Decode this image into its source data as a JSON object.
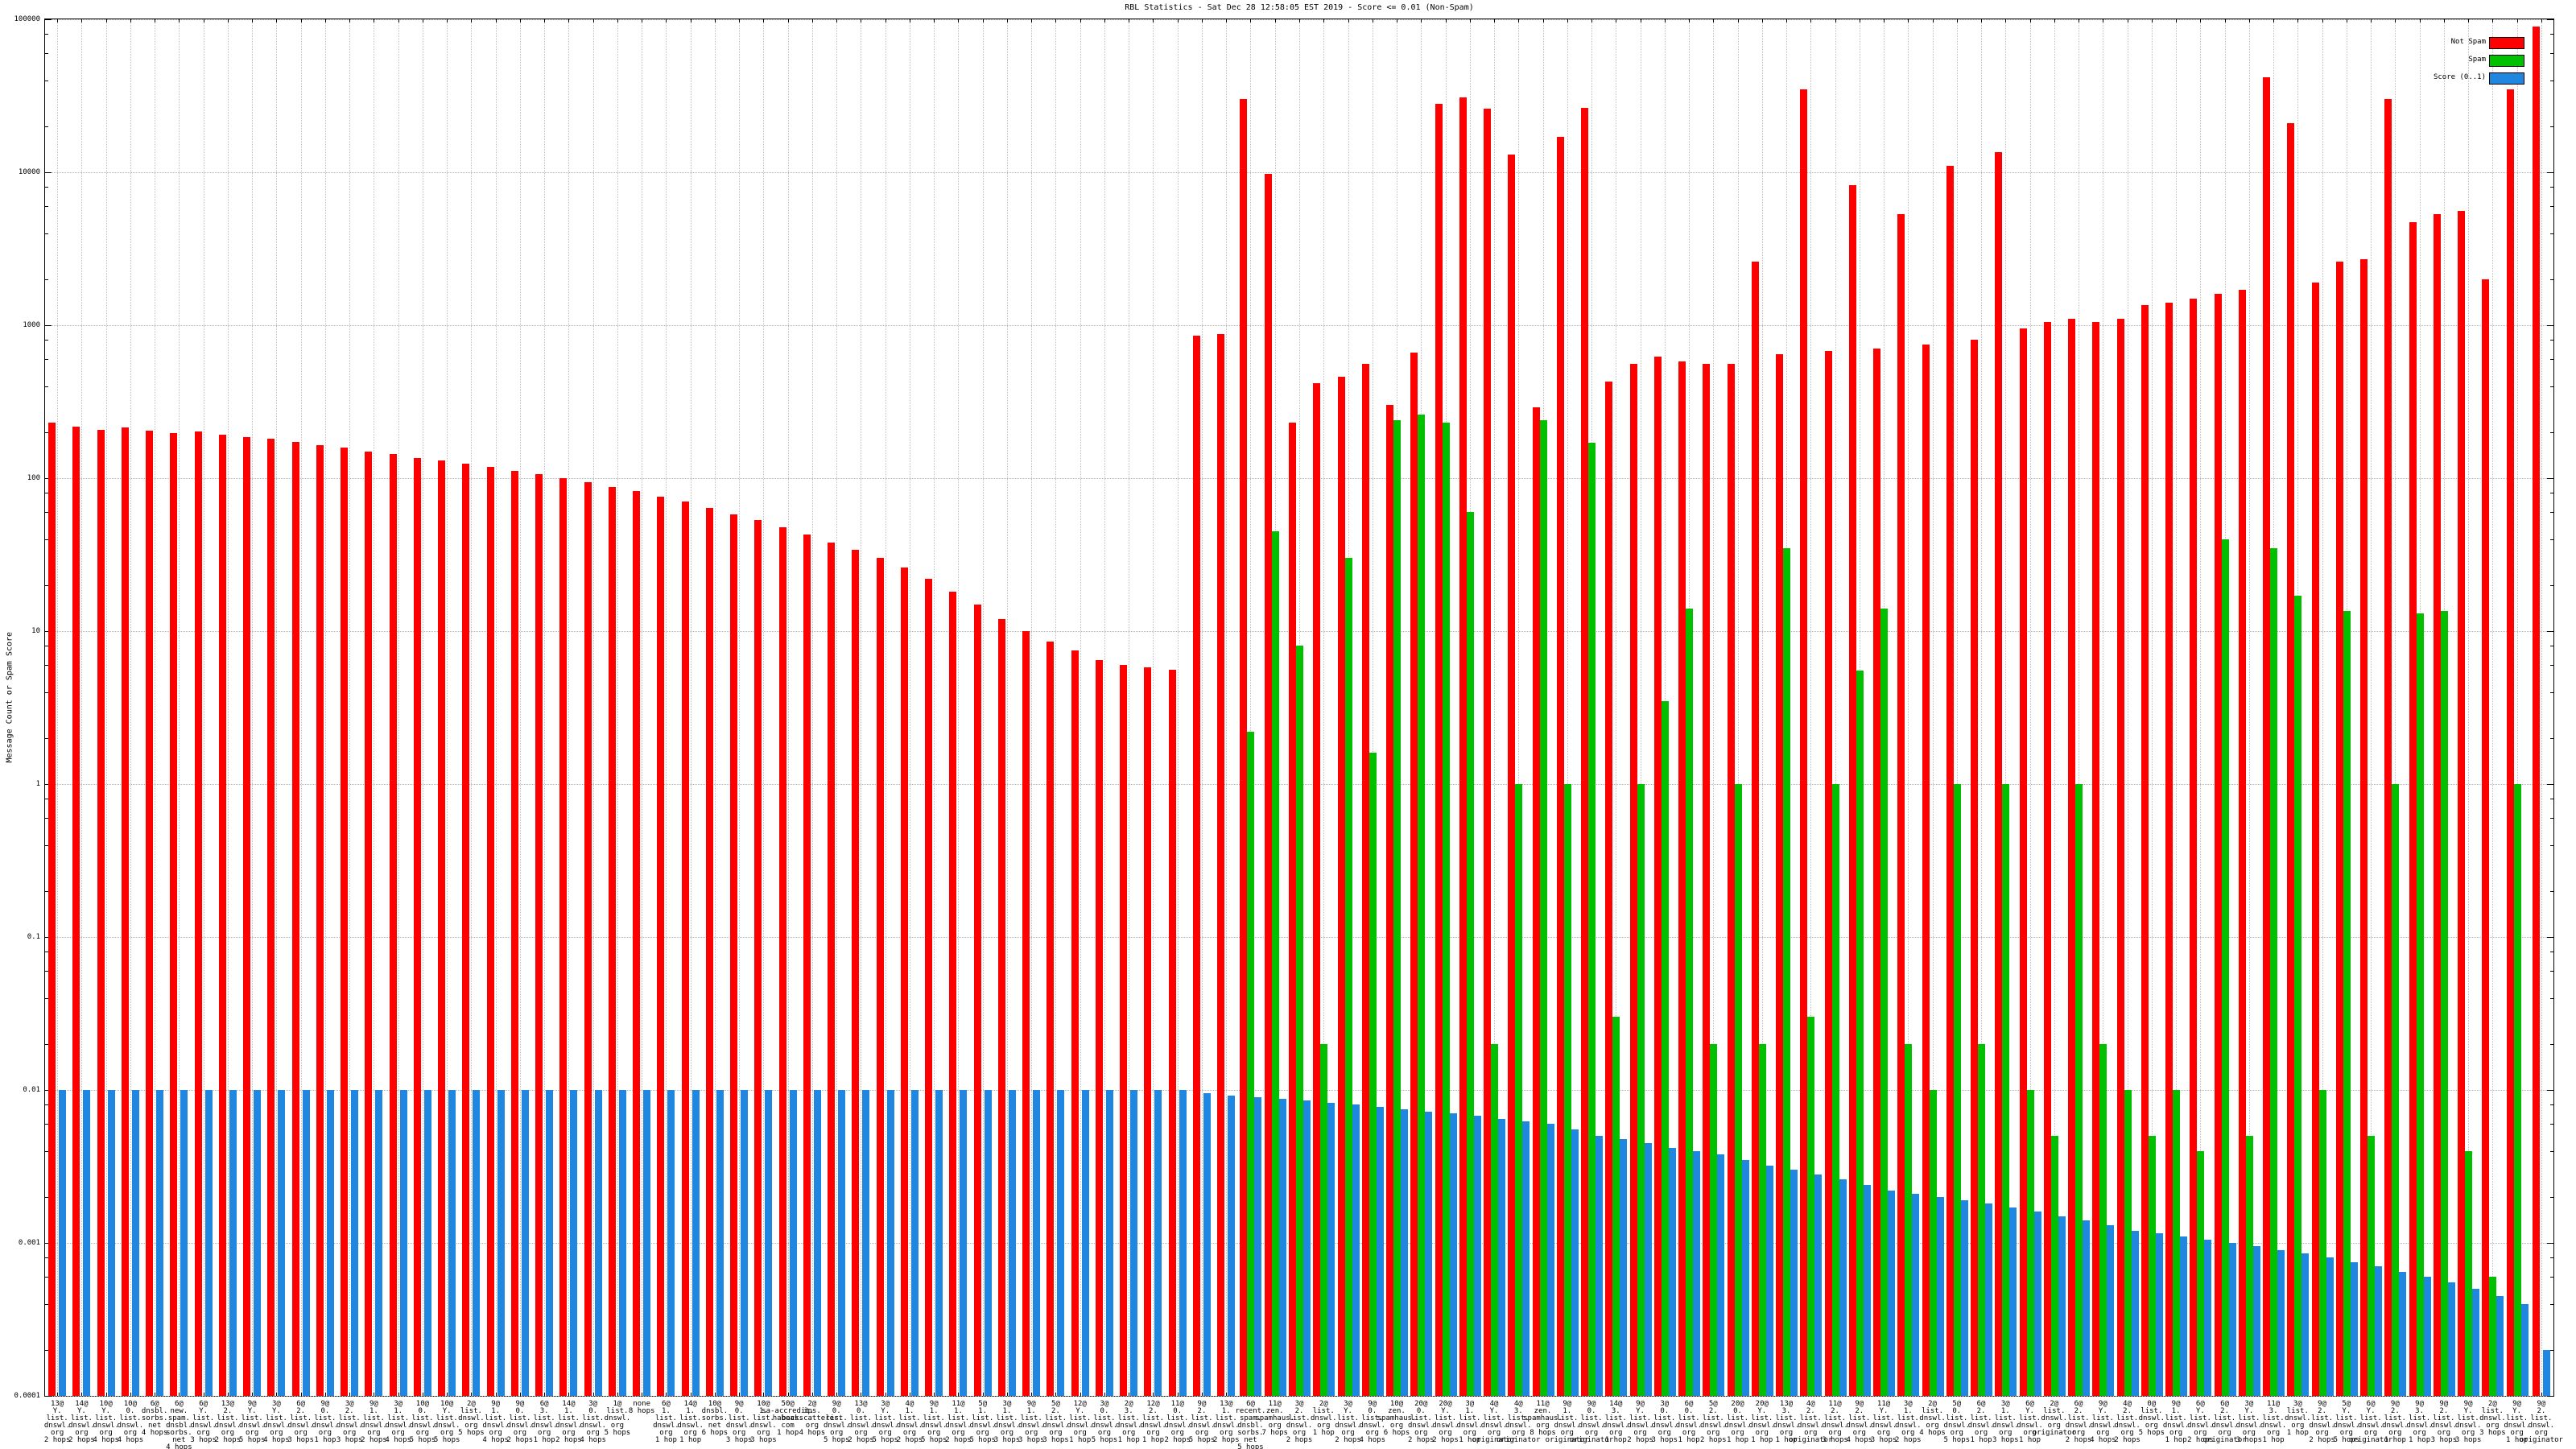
{
  "title": "RBL Statistics - Sat Dec 28 12:58:05 EST 2019 - Score <= 0.01 (Non-Spam)",
  "ylabel": "Message Count or Spam Score",
  "legend": [
    {
      "label": "Not Spam",
      "color": "#ff0000"
    },
    {
      "label": "Spam",
      "color": "#00c000"
    },
    {
      "label": "Score (0..1)",
      "color": "#1f87e0"
    }
  ],
  "chart_data": {
    "type": "bar",
    "scale_y": "log10",
    "ylim": [
      0.0001,
      100000
    ],
    "ytick_labels": [
      "100000",
      "10000",
      "1000",
      "100",
      "10",
      "1",
      "0.1",
      "0.01",
      "0.001",
      "0.0001"
    ],
    "grid": true,
    "legend_position": "top-right",
    "categories": [
      "13@ Y. list. dnswl. org 2 hops",
      "14@ Y. list. dnswl. org 2 hops",
      "10@ Y. list. dnswl. org 4 hops",
      "10@ 0. list. dnswl. org 4 hops",
      "6@ dnsbl. sorbs. net 4 hops",
      "6@ new. spam. dnsbl. sorbs. net 4 hops",
      "6@ Y. list. dnswl. org 3 hops",
      "13@ 2. list. dnswl. org 2 hops",
      "9@ Y. list. dnswl. org 5 hops",
      "3@ Y. list. dnswl. org 4 hops",
      "6@ 2. list. dnswl. org 3 hops",
      "9@ 0. list. dnswl. org 1 hop",
      "3@ 2. list. dnswl. org 3 hops",
      "9@ 1. list. dnswl. org 2 hops",
      "3@ 1. list. dnswl. org 4 hops",
      "10@ 0. list. dnswl. org 5 hops",
      "10@ Y. list. dnswl. org 5 hops",
      "2@ list. dnswl. org 5 hops",
      "9@ 1. list. dnswl. org 4 hops",
      "9@ 0. list. dnswl. org 2 hops",
      "6@ 3. list. dnswl. org 1 hop",
      "14@ 1. list. dnswl. org 2 hops",
      "3@ 0. list. dnswl. org 4 hops",
      "1@ list. dnswl. org 5 hops",
      "none 8 hops",
      "6@ 1. list. dnswl. org 1 hop",
      "14@ 1. list. dnswl. org 1 hop",
      "10@ dnsbl. sorbs. net 6 hops",
      "9@ 0. list. dnswl. org 3 hops",
      "10@ 1. list. dnswl. org 3 hops",
      "50@ sa-accredit. habeas. com 1 hop",
      "2@ ips. backscatterer. org 4 hops",
      "9@ 0. list. dnswl. org 5 hops",
      "13@ 0. list. dnswl. org 2 hops",
      "3@ Y. list. dnswl. org 5 hops",
      "4@ 1. list. dnswl. org 2 hops",
      "9@ 1. list. dnswl. org 5 hops",
      "11@ 1. list. dnswl. org 2 hops",
      "5@ 1. list. dnswl. org 5 hops",
      "3@ 1. list. dnswl. org 3 hops",
      "9@ 1. list. dnswl. org 3 hops",
      "5@ 2. list. dnswl. org 3 hops",
      "12@ Y. list. dnswl. org 1 hop",
      "3@ 0. list. dnswl. org 5 hops",
      "2@ 3. list. dnswl. org 1 hop",
      "12@ 2. list. dnswl. org 1 hop",
      "11@ 0. list. dnswl. org 2 hops",
      "9@ 2. list. dnswl. org 5 hops",
      "13@ 1. list. dnswl. org 2 hops",
      "6@ recent. spam. dnsbl. sorbs. net 5 hops",
      "11@ zen. spamhaus. org 7 hops",
      "3@ 2. list. dnswl. org 2 hops",
      "2@ list. dnswl. org 1 hop",
      "3@ Y. list. dnswl. org 2 hops",
      "9@ 0. list. dnswl. org 4 hops",
      "10@ zen. spamhaus. org 6 hops",
      "20@ 0. list. dnswl. org 2 hops",
      "20@ Y. list. dnswl. org 2 hops",
      "3@ 1. list. dnswl. org 1 hop",
      "4@ Y. list. dnswl. org originator",
      "4@ 3. list. dnswl. org originator",
      "11@ zen. spamhaus. org 8 hops",
      "9@ 1. list. dnswl. org originator",
      "9@ 0. list. dnswl. org originator",
      "14@ 3. list. dnswl. org 1 hop",
      "9@ Y. list. dnswl. org 2 hops",
      "3@ 0. list. dnswl. org 3 hops",
      "6@ 0. list. dnswl. org 1 hop",
      "5@ 2. list. dnswl. org 2 hops",
      "20@ 0. list. dnswl. org 1 hop",
      "20@ Y. list. dnswl. org 1 hop",
      "13@ 3. list. dnswl. org 1 hop",
      "4@ 2. list. dnswl. org originator",
      "11@ 2. list. dnswl. org 3 hops",
      "9@ 2. list. dnswl. org 4 hops",
      "11@ Y. list. dnswl. org 3 hops",
      "3@ 1. list. dnswl. org 2 hops",
      "2@ list. dnswl. org 4 hops",
      "5@ 0. list. dnswl. org 5 hops",
      "6@ 2. list. dnswl. org 1 hop",
      "3@ 1. list. dnswl. org 3 hops",
      "6@ Y. list. dnswl. org 1 hop",
      "2@ list. dnswl. org originator",
      "6@ 2. list. dnswl. org 2 hops",
      "9@ Y. list. dnswl. org 4 hops",
      "4@ 2. list. dnswl. org 2 hops",
      "0@ list. dnswl. org 5 hops",
      "9@ 1. list. dnswl. org 1 hop",
      "6@ Y. list. dnswl. org 2 hops",
      "6@ 2. list. dnswl. org originator",
      "3@ Y. list. dnswl. org 3 hops",
      "11@ 3. list. dnswl. org 1 hop",
      "3@ list. dnswl. org 1 hop",
      "9@ 2. list. dnswl. org 2 hops",
      "5@ Y. list. dnswl. org 5 hops",
      "6@ Y. list. dnswl. org originator",
      "9@ 2. list. dnswl. org 1 hop",
      "9@ 3. list. dnswl. org 1 hop",
      "9@ 2. list. dnswl. org 3 hops",
      "9@ Y. list. dnswl. org 3 hops",
      "2@ list. dnswl. org 3 hops",
      "9@ Y. list. dnswl. org 1 hop",
      "9@ 2. list. dnswl. org originator"
    ],
    "series": [
      {
        "name": "Not Spam",
        "color": "#ff0000",
        "values": [
          230,
          218,
          208,
          215,
          205,
          198,
          203,
          192,
          186,
          180,
          172,
          165,
          158,
          150,
          143,
          136,
          130,
          124,
          118,
          112,
          106,
          100,
          94,
          88,
          82,
          76,
          70,
          64,
          58,
          53,
          48,
          43,
          38,
          34,
          30,
          26,
          22,
          18,
          15,
          12,
          10,
          8.5,
          7.5,
          6.5,
          6,
          5.8,
          5.6,
          850,
          880,
          30000,
          9800,
          230,
          420,
          460,
          560,
          300,
          660,
          28000,
          31000,
          26000,
          13000,
          290,
          17000,
          26500,
          430,
          560,
          620,
          580,
          560,
          560,
          2600,
          650,
          35000,
          680,
          8200,
          700,
          5300,
          750,
          11000,
          800,
          13500,
          950,
          1050,
          1100,
          1050,
          1100,
          1350,
          1400,
          1500,
          1600,
          1700,
          42000,
          21000,
          1900,
          2600,
          2700,
          30000,
          4700,
          5300,
          5600,
          2000,
          35000,
          90000
        ]
      },
      {
        "name": "Spam",
        "color": "#00c000",
        "values": [
          0,
          0,
          0,
          0,
          0,
          0,
          0,
          0,
          0,
          0,
          0,
          0,
          0,
          0,
          0,
          0,
          0,
          0,
          0,
          0,
          0,
          0,
          0,
          0,
          0,
          0,
          0,
          0,
          0,
          0,
          0,
          0,
          0,
          0,
          0,
          0,
          0,
          0,
          0,
          0,
          0,
          0,
          0,
          0,
          0,
          0,
          0,
          0,
          0,
          2.2,
          45,
          8,
          0.02,
          30,
          1.6,
          240,
          260,
          230,
          60,
          0.02,
          1.0,
          240,
          1.0,
          170,
          0.03,
          1.0,
          3.5,
          14,
          0.02,
          1.0,
          0.02,
          35,
          0.03,
          1.0,
          5.5,
          14,
          0.02,
          0.01,
          1.0,
          0.02,
          1.0,
          0.01,
          0.005,
          1.0,
          0.02,
          0.01,
          0.005,
          0.01,
          0.004,
          40,
          0.005,
          35,
          17,
          0.01,
          13.5,
          0.005,
          1.0,
          13,
          13.5,
          0.004,
          0.0006,
          1.0,
          0
        ]
      },
      {
        "name": "Score (0..1)",
        "color": "#1f87e0",
        "values": [
          0.01,
          0.01,
          0.01,
          0.01,
          0.01,
          0.01,
          0.01,
          0.01,
          0.01,
          0.01,
          0.01,
          0.01,
          0.01,
          0.01,
          0.01,
          0.01,
          0.01,
          0.01,
          0.01,
          0.01,
          0.01,
          0.01,
          0.01,
          0.01,
          0.01,
          0.01,
          0.01,
          0.01,
          0.01,
          0.01,
          0.01,
          0.01,
          0.01,
          0.01,
          0.01,
          0.01,
          0.01,
          0.01,
          0.01,
          0.01,
          0.01,
          0.01,
          0.01,
          0.01,
          0.01,
          0.01,
          0.01,
          0.0095,
          0.0092,
          0.009,
          0.0088,
          0.0085,
          0.0082,
          0.008,
          0.0078,
          0.0075,
          0.0072,
          0.007,
          0.0068,
          0.0065,
          0.0062,
          0.006,
          0.0055,
          0.005,
          0.0048,
          0.0045,
          0.0042,
          0.004,
          0.0038,
          0.0035,
          0.0032,
          0.003,
          0.0028,
          0.0026,
          0.0024,
          0.0022,
          0.0021,
          0.002,
          0.0019,
          0.0018,
          0.0017,
          0.0016,
          0.0015,
          0.0014,
          0.0013,
          0.0012,
          0.00115,
          0.0011,
          0.00105,
          0.001,
          0.00095,
          0.0009,
          0.00085,
          0.0008,
          0.00075,
          0.0007,
          0.00065,
          0.0006,
          0.00055,
          0.0005,
          0.00045,
          0.0004,
          0.0002
        ]
      }
    ]
  }
}
